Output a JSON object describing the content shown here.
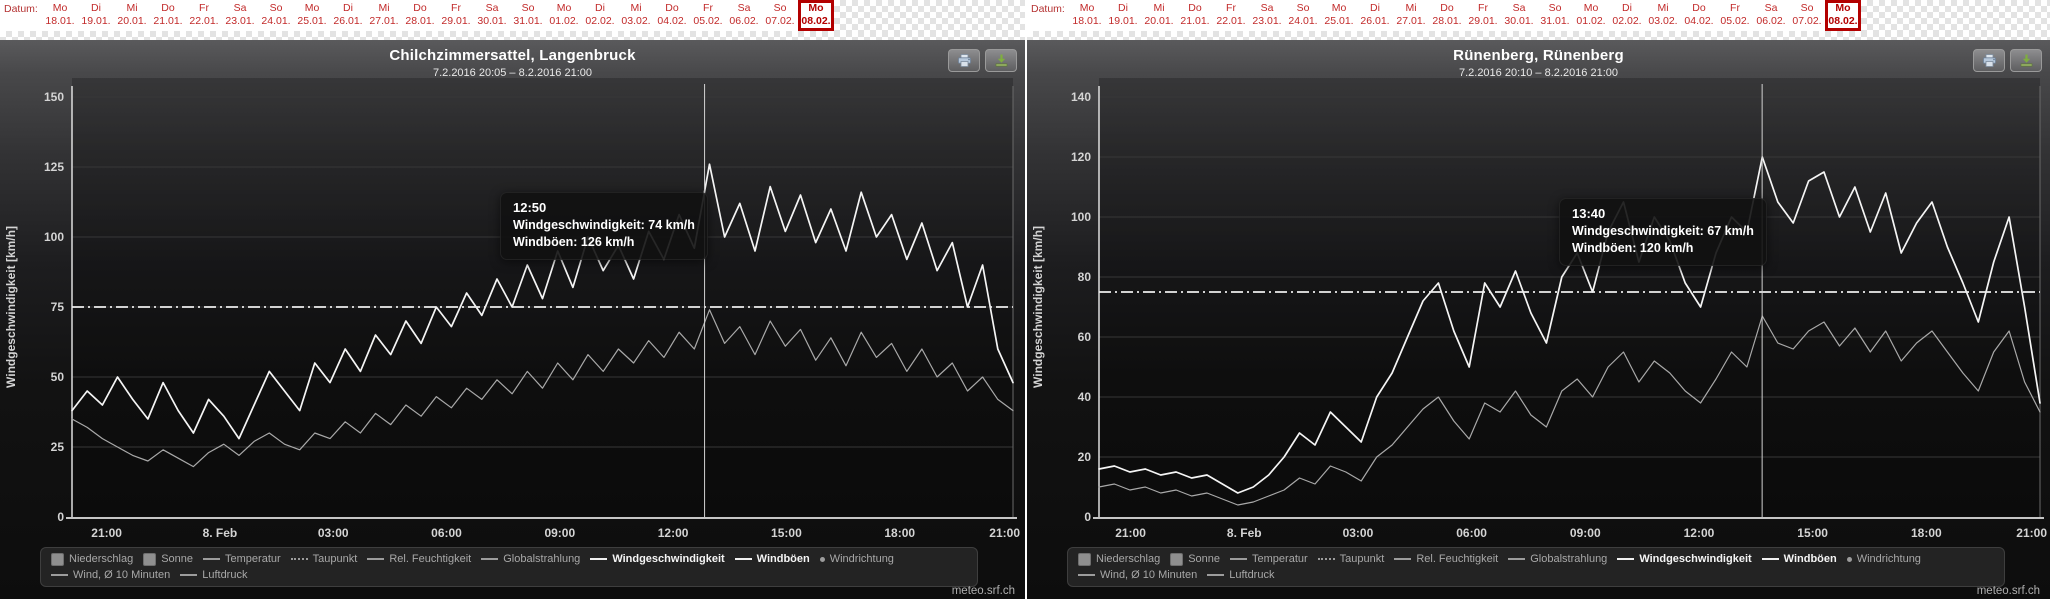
{
  "date_bar": {
    "label": "Datum:",
    "selected_index": 21,
    "days": [
      {
        "day": "Mo",
        "date": "18.01."
      },
      {
        "day": "Di",
        "date": "19.01."
      },
      {
        "day": "Mi",
        "date": "20.01."
      },
      {
        "day": "Do",
        "date": "21.01."
      },
      {
        "day": "Fr",
        "date": "22.01."
      },
      {
        "day": "Sa",
        "date": "23.01."
      },
      {
        "day": "So",
        "date": "24.01."
      },
      {
        "day": "Mo",
        "date": "25.01."
      },
      {
        "day": "Di",
        "date": "26.01."
      },
      {
        "day": "Mi",
        "date": "27.01."
      },
      {
        "day": "Do",
        "date": "28.01."
      },
      {
        "day": "Fr",
        "date": "29.01."
      },
      {
        "day": "Sa",
        "date": "30.01."
      },
      {
        "day": "So",
        "date": "31.01."
      },
      {
        "day": "Mo",
        "date": "01.02."
      },
      {
        "day": "Di",
        "date": "02.02."
      },
      {
        "day": "Mi",
        "date": "03.02."
      },
      {
        "day": "Do",
        "date": "04.02."
      },
      {
        "day": "Fr",
        "date": "05.02."
      },
      {
        "day": "Sa",
        "date": "06.02."
      },
      {
        "day": "So",
        "date": "07.02."
      },
      {
        "day": "Mo",
        "date": "08.02."
      }
    ]
  },
  "icons": {
    "print": "printer-icon",
    "download": "download-icon"
  },
  "branding": "meteo.srf.ch",
  "legend": {
    "rows": [
      [
        {
          "label": "Niederschlag",
          "swatch": "box"
        },
        {
          "label": "Sonne",
          "swatch": "box"
        },
        {
          "label": "Temperatur",
          "swatch": "line"
        },
        {
          "label": "Taupunkt",
          "swatch": "dots"
        },
        {
          "label": "Rel. Feuchtigkeit",
          "swatch": "line"
        },
        {
          "label": "Globalstrahlung",
          "swatch": "line"
        },
        {
          "label": "Windgeschwindigkeit",
          "swatch": "line",
          "bold": true
        },
        {
          "label": "Windböen",
          "swatch": "line",
          "bold": true
        },
        {
          "label": "Windrichtung",
          "swatch": "dot"
        }
      ],
      [
        {
          "label": "Wind, Ø 10 Minuten",
          "swatch": "line"
        },
        {
          "label": "Luftdruck",
          "swatch": "line"
        }
      ]
    ]
  },
  "chart_data": [
    {
      "type": "line",
      "title": "Chilchzimmersattel, Langenbruck",
      "subtitle": "7.2.2016 20:05 – 8.2.2016 21:00",
      "ylabel": "Windgeschwindigkeit [km/h]",
      "ylim": [
        0,
        150
      ],
      "ytick_step": 25,
      "grid": "horizontal",
      "legend_position": "bottom",
      "x_hours": [
        20.083,
        45
      ],
      "xticks": [
        {
          "hour": 21,
          "label": "21:00"
        },
        {
          "hour": 24,
          "label": "8. Feb"
        },
        {
          "hour": 27,
          "label": "03:00"
        },
        {
          "hour": 30,
          "label": "06:00"
        },
        {
          "hour": 33,
          "label": "09:00"
        },
        {
          "hour": 36,
          "label": "12:00"
        },
        {
          "hour": 39,
          "label": "15:00"
        },
        {
          "hour": 42,
          "label": "18:00"
        },
        {
          "hour": 45,
          "label": "21:00"
        }
      ],
      "threshold_line": 75,
      "cursor": {
        "hour": 36.833,
        "time": "12:50"
      },
      "tooltip": {
        "time": "12:50",
        "lines": [
          "Windgeschwindigkeit: 74 km/h",
          "Windböen: 126 km/h"
        ]
      },
      "series": [
        {
          "name": "Windgeschwindigkeit",
          "color": "#a9a9a9",
          "width": 1.2,
          "start_hour": 20.083,
          "values": [
            35,
            32,
            28,
            25,
            22,
            20,
            24,
            21,
            18,
            23,
            26,
            22,
            27,
            30,
            26,
            24,
            30,
            28,
            34,
            30,
            37,
            33,
            40,
            36,
            43,
            39,
            46,
            42,
            49,
            44,
            52,
            46,
            55,
            49,
            58,
            52,
            60,
            55,
            63,
            57,
            66,
            60,
            74,
            62,
            68,
            58,
            70,
            61,
            67,
            56,
            64,
            54,
            66,
            57,
            62,
            52,
            60,
            50,
            55,
            45,
            50,
            42,
            38
          ]
        },
        {
          "name": "Windböen",
          "color": "#f5f5f5",
          "width": 1.7,
          "start_hour": 20.083,
          "values": [
            38,
            45,
            40,
            50,
            42,
            35,
            48,
            38,
            30,
            42,
            36,
            28,
            40,
            52,
            45,
            38,
            55,
            48,
            60,
            52,
            65,
            58,
            70,
            62,
            75,
            68,
            80,
            72,
            85,
            75,
            90,
            78,
            95,
            82,
            100,
            88,
            97,
            85,
            102,
            92,
            108,
            96,
            126,
            100,
            112,
            95,
            118,
            102,
            115,
            98,
            110,
            95,
            116,
            100,
            108,
            92,
            105,
            88,
            98,
            75,
            90,
            60,
            48
          ]
        }
      ]
    },
    {
      "type": "line",
      "title": "Rünenberg, Rünenberg",
      "subtitle": "7.2.2016 20:10 – 8.2.2016 21:00",
      "ylabel": "Windgeschwindigkeit [km/h]",
      "ylim": [
        0,
        140
      ],
      "ytick_step": 20,
      "grid": "horizontal",
      "legend_position": "bottom",
      "x_hours": [
        20.167,
        45
      ],
      "xticks": [
        {
          "hour": 21,
          "label": "21:00"
        },
        {
          "hour": 24,
          "label": "8. Feb"
        },
        {
          "hour": 27,
          "label": "03:00"
        },
        {
          "hour": 30,
          "label": "06:00"
        },
        {
          "hour": 33,
          "label": "09:00"
        },
        {
          "hour": 36,
          "label": "12:00"
        },
        {
          "hour": 39,
          "label": "15:00"
        },
        {
          "hour": 42,
          "label": "18:00"
        },
        {
          "hour": 45,
          "label": "21:00"
        }
      ],
      "threshold_line": 75,
      "cursor": {
        "hour": 37.667,
        "time": "13:40"
      },
      "tooltip": {
        "time": "13:40",
        "lines": [
          "Windgeschwindigkeit: 67 km/h",
          "Windböen: 120 km/h"
        ]
      },
      "series": [
        {
          "name": "Windgeschwindigkeit",
          "color": "#a9a9a9",
          "width": 1.2,
          "start_hour": 20.167,
          "values": [
            10,
            11,
            9,
            10,
            8,
            9,
            7,
            8,
            6,
            4,
            5,
            7,
            9,
            13,
            11,
            17,
            15,
            12,
            20,
            24,
            30,
            36,
            40,
            32,
            26,
            38,
            35,
            42,
            34,
            30,
            42,
            46,
            40,
            50,
            55,
            45,
            52,
            48,
            42,
            38,
            46,
            55,
            50,
            67,
            58,
            56,
            62,
            65,
            57,
            63,
            55,
            62,
            52,
            58,
            62,
            55,
            48,
            42,
            55,
            62,
            45,
            35
          ]
        },
        {
          "name": "Windböen",
          "color": "#f5f5f5",
          "width": 1.7,
          "start_hour": 20.167,
          "values": [
            16,
            17,
            15,
            16,
            14,
            15,
            13,
            14,
            11,
            8,
            10,
            14,
            20,
            28,
            24,
            35,
            30,
            25,
            40,
            48,
            60,
            72,
            78,
            62,
            50,
            78,
            70,
            82,
            68,
            58,
            80,
            88,
            75,
            95,
            105,
            85,
            100,
            92,
            78,
            70,
            88,
            100,
            95,
            120,
            105,
            98,
            112,
            115,
            100,
            110,
            95,
            108,
            88,
            98,
            105,
            90,
            78,
            65,
            85,
            100,
            70,
            38
          ]
        }
      ]
    }
  ]
}
